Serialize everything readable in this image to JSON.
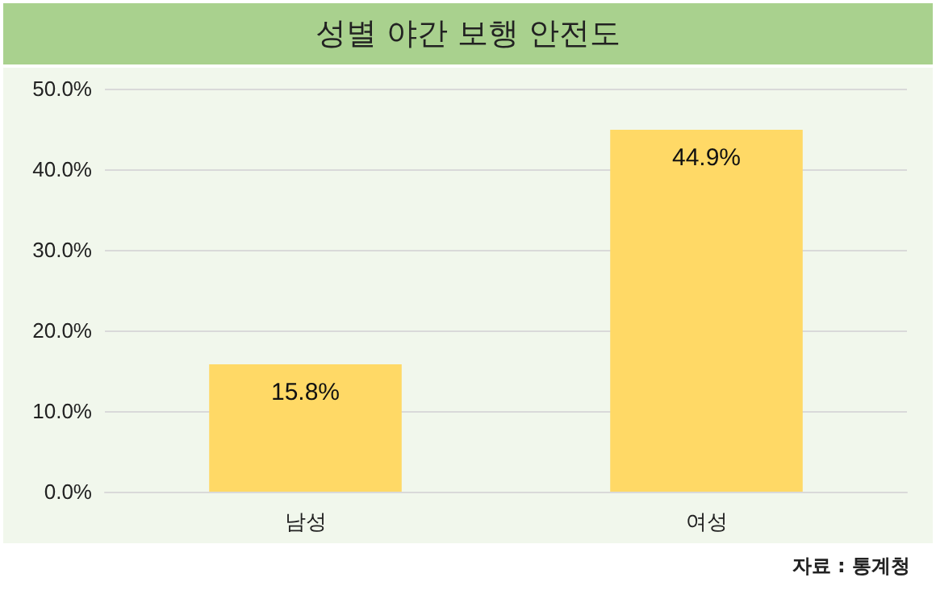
{
  "chart_data": {
    "type": "bar",
    "title": "성별 야간 보행 안전도",
    "categories": [
      "남성",
      "여성"
    ],
    "values": [
      15.8,
      44.9
    ],
    "color": "#ffd966",
    "value_labels": [
      "15.8%",
      "44.9%"
    ],
    "ylim": [
      0,
      50
    ],
    "yticks": [
      {
        "value": 0,
        "label": "0.0%"
      },
      {
        "value": 10,
        "label": "10.0%"
      },
      {
        "value": 20,
        "label": "20.0%"
      },
      {
        "value": 30,
        "label": "30.0%"
      },
      {
        "value": 40,
        "label": "40.0%"
      },
      {
        "value": 50,
        "label": "50.0%"
      }
    ],
    "grid": "y",
    "annotations": [
      "자료 : 통계청"
    ]
  }
}
